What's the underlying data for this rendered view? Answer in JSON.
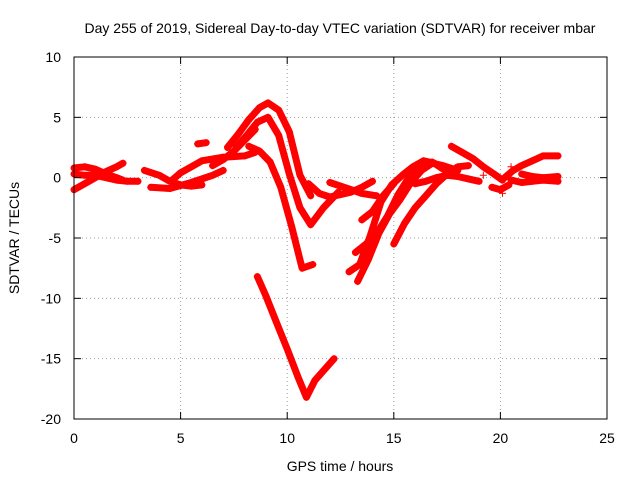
{
  "chart_data": {
    "type": "scatter",
    "title": "Day 255 of 2019, Sidereal Day-to-day VTEC variation (SDTVAR) for receiver mbar",
    "xlabel": "GPS time / hours",
    "ylabel": "SDTVAR / TECUs",
    "xlim": [
      0,
      25
    ],
    "ylim": [
      -20,
      10
    ],
    "xticks": [
      0,
      5,
      10,
      15,
      20,
      25
    ],
    "yticks": [
      -20,
      -15,
      -10,
      -5,
      0,
      5,
      10
    ],
    "xtick_labels": [
      "0",
      "5",
      "10",
      "15",
      "20",
      "25"
    ],
    "ytick_labels": [
      "-20",
      "-15",
      "-10",
      "-5",
      "0",
      "5",
      "10"
    ],
    "grid": true,
    "marker": "+",
    "color": "#ff0000",
    "series": [
      {
        "x": [
          0.0,
          0.5,
          1.0,
          1.5,
          2.0,
          2.3
        ],
        "y": [
          0.8,
          0.9,
          0.7,
          0.3,
          0.0,
          -0.2
        ]
      },
      {
        "x": [
          0.0,
          0.5,
          1.0,
          1.5,
          2.0,
          2.3
        ],
        "y": [
          -1.0,
          -0.5,
          0.0,
          0.5,
          0.9,
          1.2
        ]
      },
      {
        "x": [
          0.0,
          0.5,
          1.0,
          1.5,
          2.0,
          2.5,
          3.0
        ],
        "y": [
          0.3,
          0.2,
          0.2,
          0.0,
          -0.2,
          -0.3,
          -0.3
        ]
      },
      {
        "x": [
          3.3,
          4.0,
          4.5,
          5.0,
          5.5,
          6.0
        ],
        "y": [
          0.6,
          0.2,
          -0.3,
          -0.6,
          -0.7,
          -0.6
        ]
      },
      {
        "x": [
          3.6,
          4.5,
          5.5,
          6.5,
          7.0
        ],
        "y": [
          -0.8,
          -0.9,
          -0.4,
          0.2,
          0.6
        ]
      },
      {
        "x": [
          4.6,
          5.0,
          5.5,
          6.0,
          7.0,
          8.0,
          8.5
        ],
        "y": [
          -0.2,
          0.4,
          0.9,
          1.4,
          1.7,
          1.8,
          2.1
        ]
      },
      {
        "x": [
          5.8,
          6.2
        ],
        "y": [
          2.8,
          2.9
        ]
      },
      {
        "x": [
          6.5,
          7.0,
          7.5,
          8.0,
          8.5
        ],
        "y": [
          1.0,
          1.5,
          2.2,
          3.1,
          4.0
        ]
      },
      {
        "x": [
          7.2,
          7.7,
          8.2,
          8.7,
          9.1,
          9.6,
          10.1,
          10.6,
          11.1
        ],
        "y": [
          2.5,
          3.6,
          4.8,
          5.8,
          6.2,
          5.6,
          3.8,
          0.2,
          -1.5
        ]
      },
      {
        "x": [
          7.6,
          8.1,
          8.6,
          9.1,
          9.6,
          10.1,
          10.6,
          11.1,
          11.7,
          12.4
        ],
        "y": [
          2.5,
          3.5,
          4.6,
          5.0,
          3.5,
          0.3,
          -2.5,
          -3.9,
          -2.5,
          -1.2
        ]
      },
      {
        "x": [
          8.2,
          8.7,
          9.2,
          9.7,
          10.2,
          10.7,
          11.2
        ],
        "y": [
          2.6,
          2.2,
          1.3,
          -0.8,
          -4.0,
          -7.5,
          -7.2
        ]
      },
      {
        "x": [
          8.6,
          9.0,
          9.5,
          10.0,
          10.5,
          10.9,
          11.3,
          11.8,
          12.2
        ],
        "y": [
          -8.2,
          -9.8,
          -12.0,
          -14.2,
          -16.5,
          -18.2,
          -16.8,
          -15.8,
          -15.0
        ]
      },
      {
        "x": [
          11.0,
          11.5,
          12.0,
          12.5,
          13.0,
          13.5,
          14.0
        ],
        "y": [
          -0.5,
          -1.3,
          -1.6,
          -1.4,
          -1.2,
          -0.8,
          -0.3
        ]
      },
      {
        "x": [
          12.0,
          12.5,
          13.0,
          13.5,
          14.2
        ],
        "y": [
          -0.4,
          -0.7,
          -1.0,
          -1.3,
          -1.5
        ]
      },
      {
        "x": [
          13.2,
          13.7,
          14.2,
          14.7,
          15.2,
          15.7,
          16.2,
          16.8
        ],
        "y": [
          -6.2,
          -5.5,
          -4.6,
          -3.2,
          -1.4,
          0.0,
          0.9,
          1.3
        ]
      },
      {
        "x": [
          12.9,
          13.4,
          13.9,
          14.4,
          14.9,
          15.4,
          15.9,
          16.4,
          16.9,
          17.4
        ],
        "y": [
          -7.8,
          -7.2,
          -4.8,
          -2.0,
          -0.6,
          0.2,
          0.9,
          1.4,
          1.2,
          0.6
        ]
      },
      {
        "x": [
          13.3,
          13.8,
          14.3,
          14.8,
          15.3,
          15.8,
          16.3,
          16.8,
          17.3,
          18.0
        ],
        "y": [
          -8.6,
          -6.8,
          -4.6,
          -3.0,
          -1.8,
          -0.4,
          0.6,
          1.2,
          1.0,
          0.6
        ]
      },
      {
        "x": [
          13.5,
          14.0,
          14.5,
          15.0
        ],
        "y": [
          -3.5,
          -2.8,
          -1.5,
          -0.5
        ]
      },
      {
        "x": [
          15.0,
          15.5,
          16.0,
          16.5,
          17.0,
          17.5,
          18.0,
          18.5
        ],
        "y": [
          -5.5,
          -3.8,
          -2.5,
          -1.5,
          -0.5,
          0.3,
          0.9,
          1.0
        ]
      },
      {
        "x": [
          16.0,
          16.5,
          17.0,
          17.5,
          18.0,
          18.5,
          19.0
        ],
        "y": [
          -0.5,
          -0.3,
          0.0,
          0.2,
          0.1,
          -0.1,
          -0.3
        ]
      },
      {
        "x": [
          17.7,
          18.2,
          18.7,
          19.2,
          19.7,
          20.1
        ],
        "y": [
          2.6,
          2.1,
          1.6,
          0.9,
          0.3,
          -0.2
        ]
      },
      {
        "x": [
          19.6,
          20.0,
          20.4
        ],
        "y": [
          -0.8,
          -1.0,
          -0.6
        ]
      },
      {
        "x": [
          20.2,
          20.6,
          21.0,
          21.5,
          22.0,
          22.7
        ],
        "y": [
          0.0,
          0.6,
          1.0,
          1.4,
          1.8,
          1.8
        ]
      },
      {
        "x": [
          20.5,
          21.0,
          21.5,
          22.0,
          22.7
        ],
        "y": [
          -0.2,
          -0.4,
          -0.3,
          -0.2,
          -0.3
        ]
      },
      {
        "x": [
          21.0,
          21.5,
          22.0,
          22.7
        ],
        "y": [
          0.3,
          0.1,
          0.0,
          0.1
        ]
      }
    ],
    "scattered_points": [
      {
        "x": 20.5,
        "y": 0.9
      },
      {
        "x": 20.1,
        "y": -1.3
      },
      {
        "x": 19.2,
        "y": 0.2
      }
    ]
  }
}
